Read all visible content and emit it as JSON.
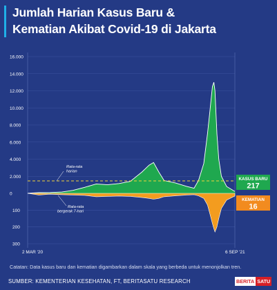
{
  "title_line1": "Jumlah Harian Kasus Baru &",
  "title_line2": "Kematian Akibat Covid-19 di Jakarta",
  "note": "Catatan: Data kasus baru dan kematian digambarkan dalam skala yang berbeda untuk menonjolkan tren.",
  "source": "SUMBER: KEMENTERIAN KESEHATAN, FT, BERITASATU RESEARCH",
  "logo_left": "BERITA",
  "logo_right": "SATU",
  "colors": {
    "background": "#243a85",
    "cases": "#1fa84f",
    "deaths": "#f39c1f",
    "avg_line": "#f2d33a",
    "callout_cases": "#1fa84f",
    "callout_deaths": "#f28b1f"
  },
  "chart_data": {
    "type": "area",
    "x_labels": [
      "2 MAR '20",
      "6 SEP '21"
    ],
    "cases_axis": {
      "ticks": [
        0,
        2000,
        4000,
        6000,
        8000,
        10000,
        12000,
        14000,
        16000
      ],
      "tick_labels": [
        "0",
        "2.000",
        "4.000",
        "6.000",
        "8.000",
        "10.000",
        "12.000",
        "14.000",
        "16.000"
      ]
    },
    "deaths_axis": {
      "ticks": [
        100,
        200,
        300
      ],
      "tick_labels": [
        "100",
        "200",
        "300"
      ]
    },
    "series": [
      {
        "name": "Kasus baru",
        "x": [
          "2020-03-02",
          "2020-04-01",
          "2020-05-01",
          "2020-06-01",
          "2020-07-01",
          "2020-08-01",
          "2020-09-01",
          "2020-10-01",
          "2020-11-01",
          "2020-12-01",
          "2021-01-01",
          "2021-01-20",
          "2021-02-01",
          "2021-02-15",
          "2021-03-01",
          "2021-04-01",
          "2021-05-01",
          "2021-05-20",
          "2021-06-01",
          "2021-06-15",
          "2021-06-25",
          "2021-07-01",
          "2021-07-08",
          "2021-07-12",
          "2021-07-15",
          "2021-07-20",
          "2021-07-25",
          "2021-08-01",
          "2021-08-15",
          "2021-09-06"
        ],
        "values": [
          0,
          80,
          100,
          150,
          350,
          700,
          1100,
          1000,
          1150,
          1400,
          2500,
          3300,
          3600,
          2500,
          1500,
          1200,
          800,
          600,
          1500,
          3500,
          7000,
          9500,
          12500,
          13000,
          12000,
          7000,
          4000,
          2000,
          800,
          217
        ]
      },
      {
        "name": "Kematian",
        "x": [
          "2020-03-02",
          "2020-04-01",
          "2020-05-01",
          "2020-06-01",
          "2020-07-01",
          "2020-08-01",
          "2020-09-01",
          "2020-10-01",
          "2020-11-01",
          "2020-12-01",
          "2021-01-01",
          "2021-01-20",
          "2021-02-01",
          "2021-02-15",
          "2021-03-01",
          "2021-04-01",
          "2021-05-01",
          "2021-05-20",
          "2021-06-01",
          "2021-06-15",
          "2021-06-25",
          "2021-07-01",
          "2021-07-08",
          "2021-07-12",
          "2021-07-15",
          "2021-07-20",
          "2021-07-25",
          "2021-08-01",
          "2021-08-15",
          "2021-09-06"
        ],
        "values": [
          0,
          10,
          5,
          8,
          10,
          12,
          20,
          18,
          16,
          18,
          25,
          30,
          35,
          30,
          20,
          15,
          10,
          8,
          15,
          30,
          70,
          120,
          180,
          210,
          230,
          200,
          150,
          90,
          40,
          16
        ]
      }
    ],
    "annotations": {
      "avg_upper": "Rata-rata harian",
      "avg_lower": "Rata-rata bergerak 7-hari",
      "avg_cases_value": 1450
    },
    "callouts": {
      "cases_label": "KASUS BARU",
      "cases_value": "217",
      "deaths_label": "KEMATIAN",
      "deaths_value": "16"
    }
  }
}
